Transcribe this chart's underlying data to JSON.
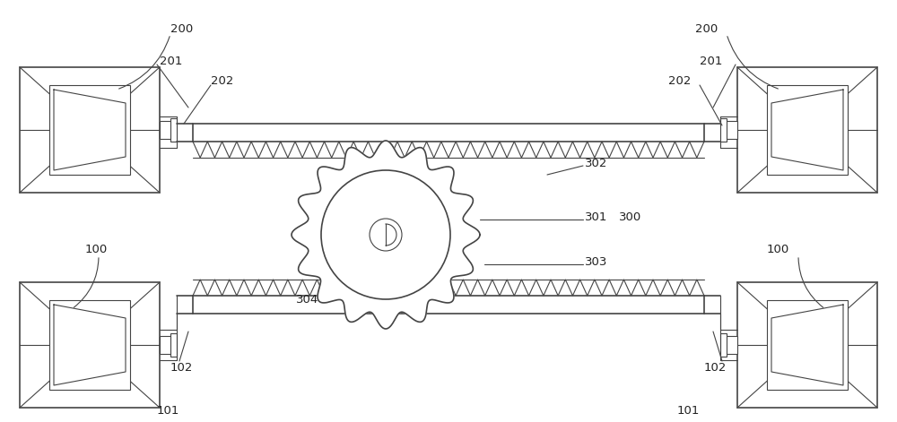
{
  "bg_color": "#ffffff",
  "line_color": "#444444",
  "label_color": "#222222",
  "fig_width": 10.0,
  "fig_height": 4.71,
  "dpi": 100
}
